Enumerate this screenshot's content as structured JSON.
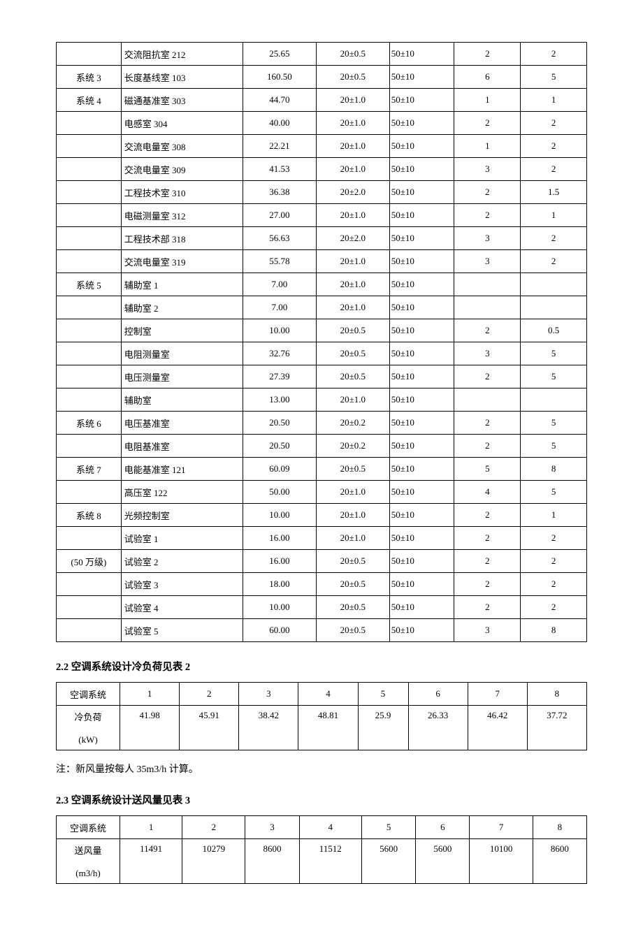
{
  "table1": {
    "columns_count": 7,
    "col_classes": [
      "col-sys",
      "col-room",
      "col-area",
      "col-temp",
      "col-hum",
      "col-v1",
      "col-v2"
    ],
    "rows": [
      {
        "sys": "",
        "room": "交流阻抗室 212",
        "area": "25.65",
        "temp": "20±0.5",
        "hum": "50±10",
        "v1": "2",
        "v2": "2"
      },
      {
        "sys": "系统 3",
        "room": "长度基线室 103",
        "area": "160.50",
        "temp": "20±0.5",
        "hum": "50±10",
        "v1": "6",
        "v2": "5"
      },
      {
        "sys": "系统 4",
        "room": "磁通基准室 303",
        "area": "44.70",
        "temp": "20±1.0",
        "hum": "50±10",
        "v1": "1",
        "v2": "1"
      },
      {
        "sys": "",
        "room": "电感室 304",
        "area": "40.00",
        "temp": "20±1.0",
        "hum": "50±10",
        "v1": "2",
        "v2": "2"
      },
      {
        "sys": "",
        "room": "交流电量室 308",
        "area": "22.21",
        "temp": "20±1.0",
        "hum": "50±10",
        "v1": "1",
        "v2": "2"
      },
      {
        "sys": "",
        "room": "交流电量室 309",
        "area": "41.53",
        "temp": "20±1.0",
        "hum": "50±10",
        "v1": "3",
        "v2": "2"
      },
      {
        "sys": "",
        "room": "工程技术室 310",
        "area": "36.38",
        "temp": "20±2.0",
        "hum": "50±10",
        "v1": "2",
        "v2": "1.5"
      },
      {
        "sys": "",
        "room": "电磁测量室 312",
        "area": "27.00",
        "temp": "20±1.0",
        "hum": "50±10",
        "v1": "2",
        "v2": "1"
      },
      {
        "sys": "",
        "room": "工程技术部 318",
        "area": "56.63",
        "temp": "20±2.0",
        "hum": "50±10",
        "v1": "3",
        "v2": "2"
      },
      {
        "sys": "",
        "room": "交流电量室 319",
        "area": "55.78",
        "temp": "20±1.0",
        "hum": "50±10",
        "v1": "3",
        "v2": "2"
      },
      {
        "sys": "系统 5",
        "room": "辅助室 1",
        "area": "7.00",
        "temp": "20±1.0",
        "hum": "50±10",
        "v1": "",
        "v2": ""
      },
      {
        "sys": "",
        "room": "辅助室 2",
        "area": "7.00",
        "temp": "20±1.0",
        "hum": "50±10",
        "v1": "",
        "v2": ""
      },
      {
        "sys": "",
        "room": "控制室",
        "area": "10.00",
        "temp": "20±0.5",
        "hum": "50±10",
        "v1": "2",
        "v2": "0.5"
      },
      {
        "sys": "",
        "room": "电阻测量室",
        "area": "32.76",
        "temp": "20±0.5",
        "hum": "50±10",
        "v1": "3",
        "v2": "5"
      },
      {
        "sys": "",
        "room": "电压测量室",
        "area": "27.39",
        "temp": "20±0.5",
        "hum": "50±10",
        "v1": "2",
        "v2": "5"
      },
      {
        "sys": "",
        "room": "辅助室",
        "area": "13.00",
        "temp": "20±1.0",
        "hum": "50±10",
        "v1": "",
        "v2": ""
      },
      {
        "sys": "系统 6",
        "room": "电压基准室",
        "area": "20.50",
        "temp": "20±0.2",
        "hum": "50±10",
        "v1": "2",
        "v2": "5"
      },
      {
        "sys": "",
        "room": "电阻基准室",
        "area": "20.50",
        "temp": "20±0.2",
        "hum": "50±10",
        "v1": "2",
        "v2": "5"
      },
      {
        "sys": "系统 7",
        "room": "电能基准室 121",
        "area": "60.09",
        "temp": "20±0.5",
        "hum": "50±10",
        "v1": "5",
        "v2": "8"
      },
      {
        "sys": "",
        "room": "高压室 122",
        "area": "50.00",
        "temp": "20±1.0",
        "hum": "50±10",
        "v1": "4",
        "v2": "5"
      },
      {
        "sys": "系统 8",
        "room": "光频控制室",
        "area": "10.00",
        "temp": "20±1.0",
        "hum": "50±10",
        "v1": "2",
        "v2": "1"
      },
      {
        "sys": "",
        "room": "试验室 1",
        "area": "16.00",
        "temp": "20±1.0",
        "hum": "50±10",
        "v1": "2",
        "v2": "2"
      },
      {
        "sys": "(50 万级)",
        "room": "试验室 2",
        "area": "16.00",
        "temp": "20±0.5",
        "hum": "50±10",
        "v1": "2",
        "v2": "2"
      },
      {
        "sys": "",
        "room": "试验室 3",
        "area": "18.00",
        "temp": "20±0.5",
        "hum": "50±10",
        "v1": "2",
        "v2": "2"
      },
      {
        "sys": "",
        "room": "试验室 4",
        "area": "10.00",
        "temp": "20±0.5",
        "hum": "50±10",
        "v1": "2",
        "v2": "2"
      },
      {
        "sys": "",
        "room": "试验室 5",
        "area": "60.00",
        "temp": "20±0.5",
        "hum": "50±10",
        "v1": "3",
        "v2": "8"
      }
    ]
  },
  "section22_title": "2.2 空调系统设计冷负荷见表 2",
  "table2": {
    "header_label": "空调系统",
    "row_label_1": "冷负荷",
    "row_label_2": "(kW)",
    "cols": [
      "1",
      "2",
      "3",
      "4",
      "5",
      "6",
      "7",
      "8"
    ],
    "vals": [
      "41.98",
      "45.91",
      "38.42",
      "48.81",
      "25.9",
      "26.33",
      "46.42",
      "37.72"
    ]
  },
  "note22": "注：新风量按每人 35m3/h 计算。",
  "section23_title": "2.3 空调系统设计送风量见表 3",
  "table3": {
    "header_label": "空调系统",
    "row_label_1": "送风量",
    "row_label_2": "(m3/h)",
    "cols": [
      "1",
      "2",
      "3",
      "4",
      "5",
      "6",
      "7",
      "8"
    ],
    "vals": [
      "11491",
      "10279",
      "8600",
      "11512",
      "5600",
      "5600",
      "10100",
      "8600"
    ]
  }
}
